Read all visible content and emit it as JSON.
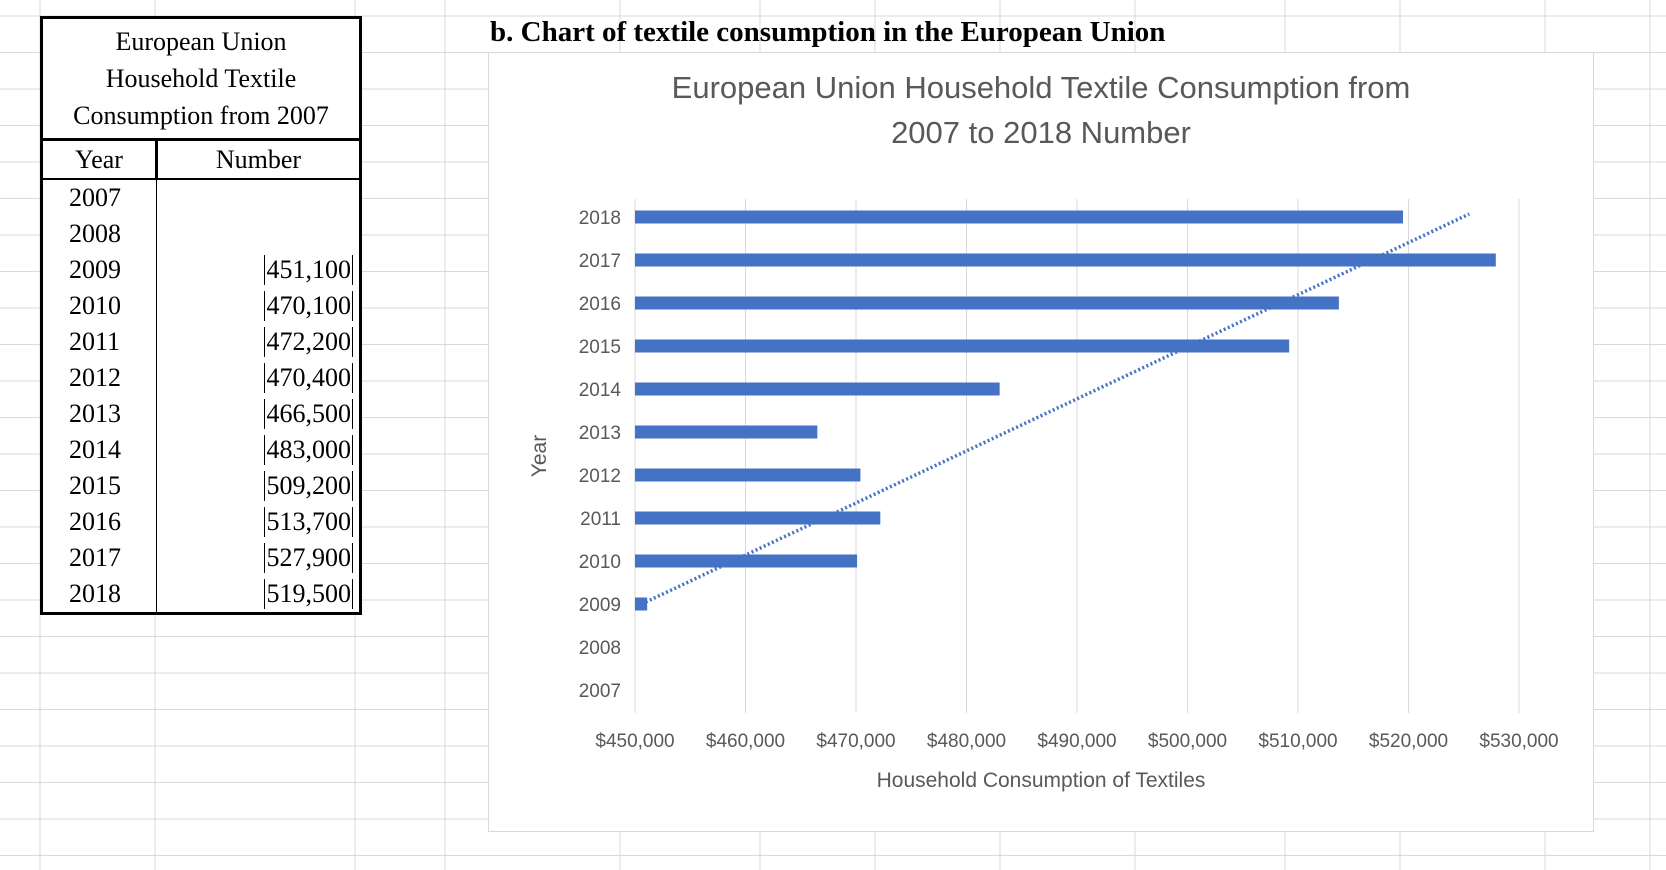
{
  "table": {
    "title_lines": [
      "European Union",
      "Household Textile",
      "Consumption from 2007"
    ],
    "headers": {
      "year": "Year",
      "number": "Number"
    },
    "rows": [
      {
        "year": "2007",
        "number": ""
      },
      {
        "year": "2008",
        "number": ""
      },
      {
        "year": "2009",
        "number": "451,100"
      },
      {
        "year": "2010",
        "number": "470,100"
      },
      {
        "year": "2011",
        "number": "472,200"
      },
      {
        "year": "2012",
        "number": "470,400"
      },
      {
        "year": "2013",
        "number": "466,500"
      },
      {
        "year": "2014",
        "number": "483,000"
      },
      {
        "year": "2015",
        "number": "509,200"
      },
      {
        "year": "2016",
        "number": "513,700"
      },
      {
        "year": "2017",
        "number": "527,900"
      },
      {
        "year": "2018",
        "number": "519,500"
      }
    ]
  },
  "subheading": "b. Chart of textile consumption in the European Union",
  "chart_data": {
    "type": "bar",
    "orientation": "horizontal",
    "title_lines": [
      "European Union Household Textile Consumption from",
      "2007 to 2018 Number"
    ],
    "xlabel": "Household Consumption of Textiles",
    "ylabel": "Year",
    "categories": [
      "2007",
      "2008",
      "2009",
      "2010",
      "2011",
      "2012",
      "2013",
      "2014",
      "2015",
      "2016",
      "2017",
      "2018"
    ],
    "values": [
      null,
      null,
      451100,
      470100,
      472200,
      470400,
      466500,
      483000,
      509200,
      513700,
      527900,
      519500
    ],
    "xlim": [
      450000,
      530000
    ],
    "x_ticks": [
      450000,
      460000,
      470000,
      480000,
      490000,
      500000,
      510000,
      520000,
      530000
    ],
    "x_tick_labels": [
      "$450,000",
      "$460,000",
      "$470,000",
      "$480,000",
      "$490,000",
      "$500,000",
      "$510,000",
      "$520,000",
      "$530,000"
    ],
    "trendline": {
      "style": "dotted",
      "type": "linear",
      "from": {
        "year": "2009",
        "value": 450600
      },
      "to": {
        "year": "2018",
        "value": 525500
      }
    },
    "grid": "vertical",
    "bar_color": "#4472c4",
    "text_color": "#595959",
    "grid_color": "#d9d9d9"
  }
}
